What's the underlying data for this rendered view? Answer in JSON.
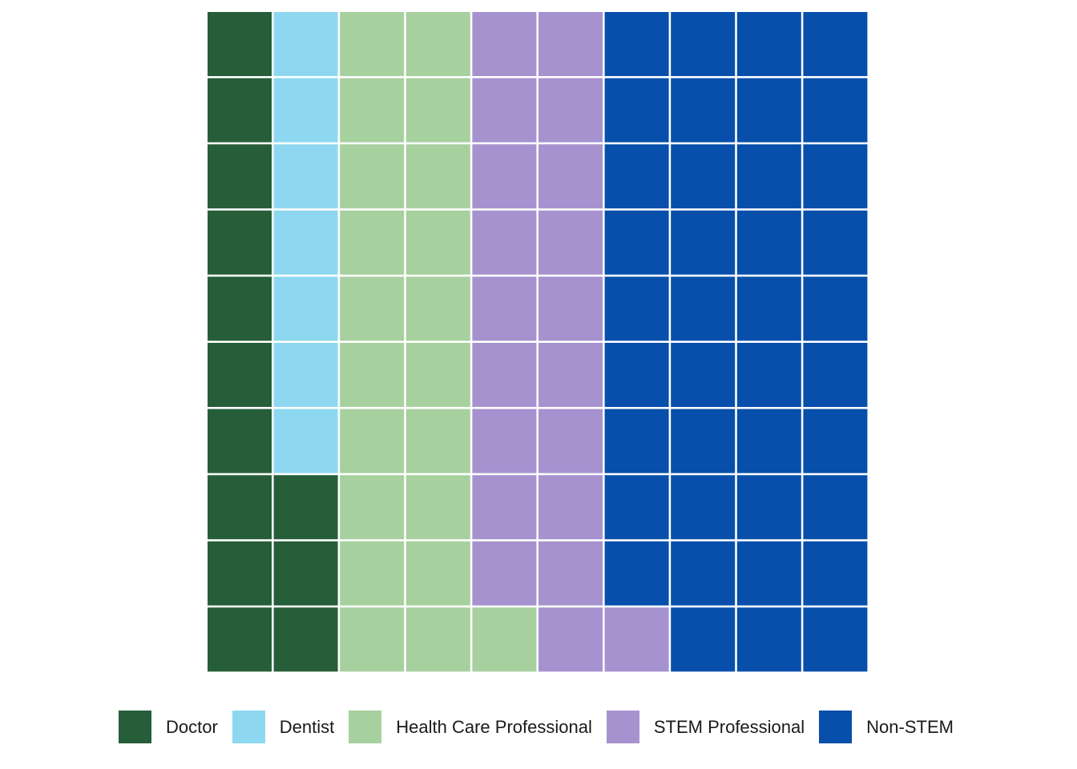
{
  "chart_data": {
    "type": "waffle",
    "rows": 10,
    "cols": 10,
    "fill_order": "column-major, bottom-to-top",
    "legend_placement": "bottom",
    "categories": [
      {
        "name": "Doctor",
        "count": 13,
        "color": "#265e3a"
      },
      {
        "name": "Dentist",
        "count": 7,
        "color": "#8dd8f0"
      },
      {
        "name": "Health Care Professional",
        "count": 21,
        "color": "#a7d09f"
      },
      {
        "name": "STEM Professional",
        "count": 20,
        "color": "#a692cf"
      },
      {
        "name": "Non-STEM",
        "count": 39,
        "color": "#074fab"
      }
    ]
  }
}
